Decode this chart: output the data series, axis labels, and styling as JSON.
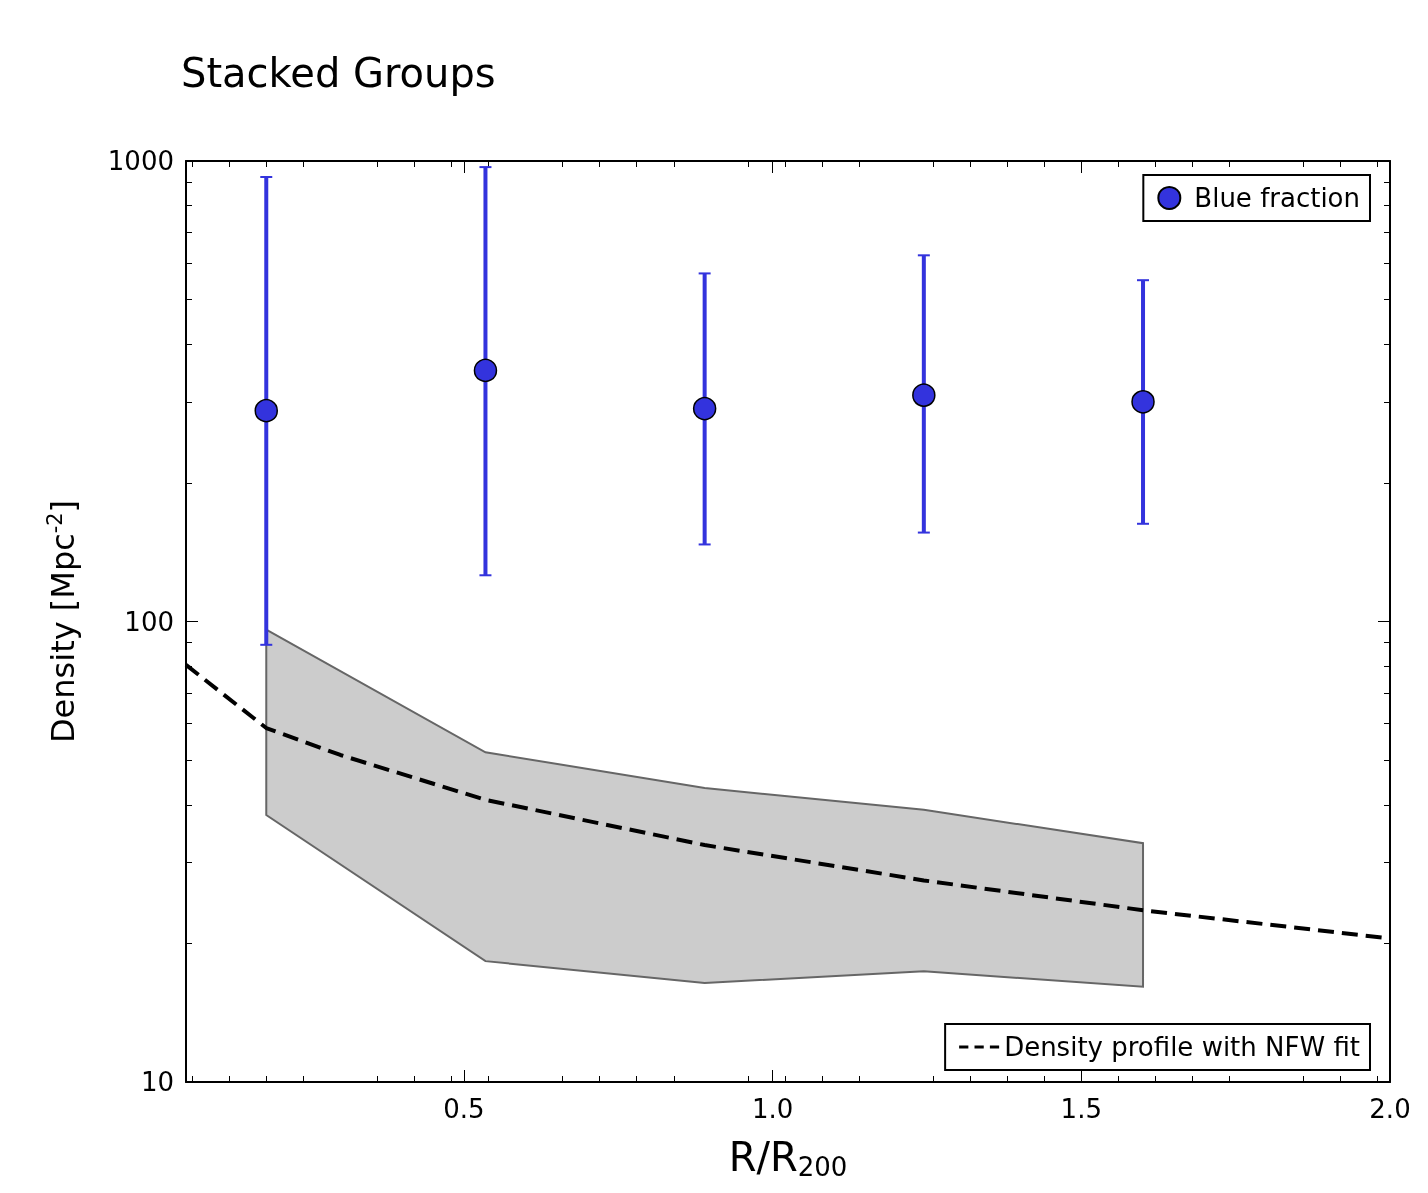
{
  "chart_data": {
    "type": "scatter",
    "title": "Stacked Groups",
    "xlabel": "R/R$_{200}$",
    "ylabel": "Density [Mpc$^{-2}$]",
    "log": "y",
    "xlim": [
      0.05,
      2.0
    ],
    "xticks": [
      0.5,
      {
        "value": 1,
        "label": "1.0"
      },
      1.5,
      {
        "value": 2,
        "label": "2.0"
      }
    ],
    "ylim": [
      10,
      1000
    ],
    "yticks": [
      10,
      100,
      1000
    ],
    "grid": false,
    "legend": "right",
    "series": [
      {
        "type": "area",
        "color": "#cccccc",
        "x": [
          0.18,
          0.535,
          0.89,
          1.245,
          1.6
        ],
        "values": [
          null,
          null,
          null,
          null,
          null
        ],
        "lower": [
          38,
          18.3,
          16.4,
          17.4,
          16.1
        ],
        "upper": [
          96,
          52,
          43.5,
          39,
          33
        ]
      },
      {
        "name": "Blue fraction",
        "color": "#3333dd",
        "marker": "circle",
        "x": [
          0.18,
          0.535,
          0.89,
          1.245,
          1.6
        ],
        "values": [
          287,
          351,
          290,
          310,
          300
        ],
        "errors": [
          [
            89,
            923
          ],
          [
            126,
            970
          ],
          [
            147,
            570
          ],
          [
            156,
            624
          ],
          [
            163,
            551
          ]
        ]
      },
      {
        "type": "line",
        "name": "Density profile with NFW fit",
        "color": "#000000",
        "line_style": "dashed",
        "marker": "none",
        "x": [
          0.05,
          0.18,
          0.3,
          0.535,
          0.89,
          1.245,
          1.6,
          2.0
        ],
        "values": [
          80.5,
          58.7,
          51.3,
          41,
          32.7,
          27.4,
          23.6,
          20.5
        ]
      }
    ]
  }
}
